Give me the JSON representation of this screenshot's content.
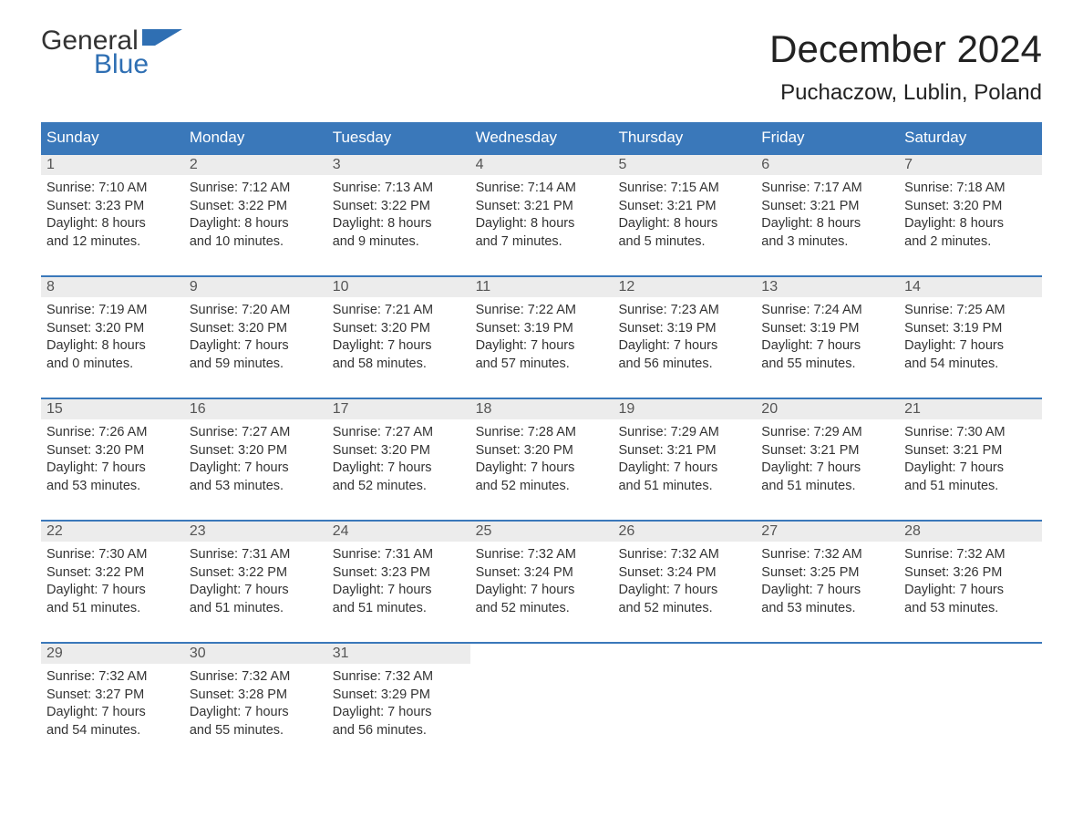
{
  "logo": {
    "line1": "General",
    "line2": "Blue",
    "accent_color": "#2f6fb3"
  },
  "title": "December 2024",
  "location": "Puchaczow, Lublin, Poland",
  "header_bg": "#3a78ba",
  "daynum_bg": "#ececec",
  "border_color": "#3a78ba",
  "weekdays": [
    "Sunday",
    "Monday",
    "Tuesday",
    "Wednesday",
    "Thursday",
    "Friday",
    "Saturday"
  ],
  "weeks": [
    [
      {
        "day": "1",
        "sunrise": "7:10 AM",
        "sunset": "3:23 PM",
        "daylight_h": "8",
        "daylight_m": "12"
      },
      {
        "day": "2",
        "sunrise": "7:12 AM",
        "sunset": "3:22 PM",
        "daylight_h": "8",
        "daylight_m": "10"
      },
      {
        "day": "3",
        "sunrise": "7:13 AM",
        "sunset": "3:22 PM",
        "daylight_h": "8",
        "daylight_m": "9"
      },
      {
        "day": "4",
        "sunrise": "7:14 AM",
        "sunset": "3:21 PM",
        "daylight_h": "8",
        "daylight_m": "7"
      },
      {
        "day": "5",
        "sunrise": "7:15 AM",
        "sunset": "3:21 PM",
        "daylight_h": "8",
        "daylight_m": "5"
      },
      {
        "day": "6",
        "sunrise": "7:17 AM",
        "sunset": "3:21 PM",
        "daylight_h": "8",
        "daylight_m": "3"
      },
      {
        "day": "7",
        "sunrise": "7:18 AM",
        "sunset": "3:20 PM",
        "daylight_h": "8",
        "daylight_m": "2"
      }
    ],
    [
      {
        "day": "8",
        "sunrise": "7:19 AM",
        "sunset": "3:20 PM",
        "daylight_h": "8",
        "daylight_m": "0"
      },
      {
        "day": "9",
        "sunrise": "7:20 AM",
        "sunset": "3:20 PM",
        "daylight_h": "7",
        "daylight_m": "59"
      },
      {
        "day": "10",
        "sunrise": "7:21 AM",
        "sunset": "3:20 PM",
        "daylight_h": "7",
        "daylight_m": "58"
      },
      {
        "day": "11",
        "sunrise": "7:22 AM",
        "sunset": "3:19 PM",
        "daylight_h": "7",
        "daylight_m": "57"
      },
      {
        "day": "12",
        "sunrise": "7:23 AM",
        "sunset": "3:19 PM",
        "daylight_h": "7",
        "daylight_m": "56"
      },
      {
        "day": "13",
        "sunrise": "7:24 AM",
        "sunset": "3:19 PM",
        "daylight_h": "7",
        "daylight_m": "55"
      },
      {
        "day": "14",
        "sunrise": "7:25 AM",
        "sunset": "3:19 PM",
        "daylight_h": "7",
        "daylight_m": "54"
      }
    ],
    [
      {
        "day": "15",
        "sunrise": "7:26 AM",
        "sunset": "3:20 PM",
        "daylight_h": "7",
        "daylight_m": "53"
      },
      {
        "day": "16",
        "sunrise": "7:27 AM",
        "sunset": "3:20 PM",
        "daylight_h": "7",
        "daylight_m": "53"
      },
      {
        "day": "17",
        "sunrise": "7:27 AM",
        "sunset": "3:20 PM",
        "daylight_h": "7",
        "daylight_m": "52"
      },
      {
        "day": "18",
        "sunrise": "7:28 AM",
        "sunset": "3:20 PM",
        "daylight_h": "7",
        "daylight_m": "52"
      },
      {
        "day": "19",
        "sunrise": "7:29 AM",
        "sunset": "3:21 PM",
        "daylight_h": "7",
        "daylight_m": "51"
      },
      {
        "day": "20",
        "sunrise": "7:29 AM",
        "sunset": "3:21 PM",
        "daylight_h": "7",
        "daylight_m": "51"
      },
      {
        "day": "21",
        "sunrise": "7:30 AM",
        "sunset": "3:21 PM",
        "daylight_h": "7",
        "daylight_m": "51"
      }
    ],
    [
      {
        "day": "22",
        "sunrise": "7:30 AM",
        "sunset": "3:22 PM",
        "daylight_h": "7",
        "daylight_m": "51"
      },
      {
        "day": "23",
        "sunrise": "7:31 AM",
        "sunset": "3:22 PM",
        "daylight_h": "7",
        "daylight_m": "51"
      },
      {
        "day": "24",
        "sunrise": "7:31 AM",
        "sunset": "3:23 PM",
        "daylight_h": "7",
        "daylight_m": "51"
      },
      {
        "day": "25",
        "sunrise": "7:32 AM",
        "sunset": "3:24 PM",
        "daylight_h": "7",
        "daylight_m": "52"
      },
      {
        "day": "26",
        "sunrise": "7:32 AM",
        "sunset": "3:24 PM",
        "daylight_h": "7",
        "daylight_m": "52"
      },
      {
        "day": "27",
        "sunrise": "7:32 AM",
        "sunset": "3:25 PM",
        "daylight_h": "7",
        "daylight_m": "53"
      },
      {
        "day": "28",
        "sunrise": "7:32 AM",
        "sunset": "3:26 PM",
        "daylight_h": "7",
        "daylight_m": "53"
      }
    ],
    [
      {
        "day": "29",
        "sunrise": "7:32 AM",
        "sunset": "3:27 PM",
        "daylight_h": "7",
        "daylight_m": "54"
      },
      {
        "day": "30",
        "sunrise": "7:32 AM",
        "sunset": "3:28 PM",
        "daylight_h": "7",
        "daylight_m": "55"
      },
      {
        "day": "31",
        "sunrise": "7:32 AM",
        "sunset": "3:29 PM",
        "daylight_h": "7",
        "daylight_m": "56"
      },
      null,
      null,
      null,
      null
    ]
  ],
  "labels": {
    "sunrise": "Sunrise:",
    "sunset": "Sunset:",
    "daylight": "Daylight:",
    "hours": "hours",
    "and": "and",
    "minutes": "minutes."
  }
}
